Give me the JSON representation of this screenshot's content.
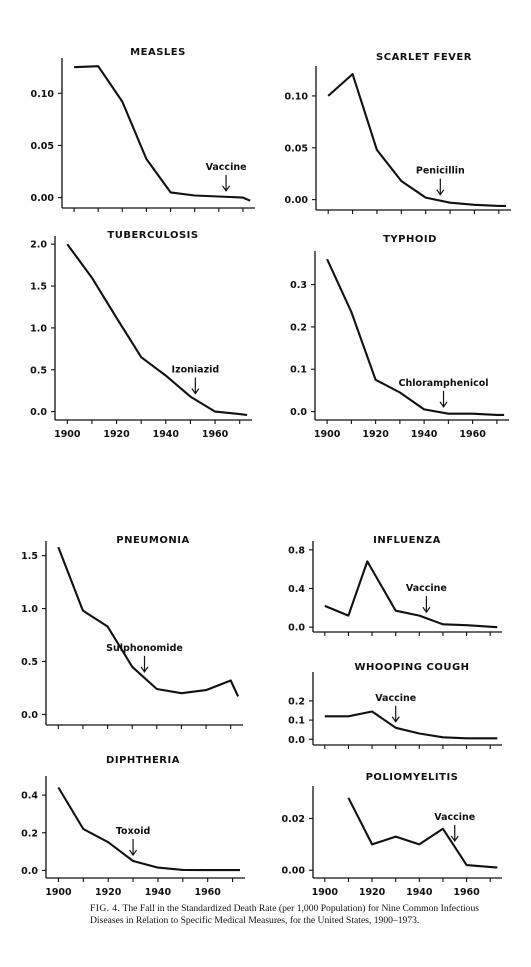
{
  "caption": {
    "lead": "FIG. 4.",
    "text": "The Fall in the Standardized Death Rate (per 1,000 Population) for Nine Common Infectious Diseases in Relation to Specific Medical Measures, for the United States, 1900–1973."
  },
  "colors": {
    "ink": "#111111",
    "background": "#ffffff"
  },
  "chart_data": [
    {
      "type": "line",
      "title": "MEASLES",
      "x": [
        1900,
        1910,
        1920,
        1930,
        1940,
        1950,
        1960,
        1970,
        1973
      ],
      "y": [
        0.125,
        0.126,
        0.092,
        0.037,
        0.005,
        0.002,
        0.001,
        0.0,
        -0.003
      ],
      "ylim": [
        -0.01,
        0.13
      ],
      "yticks": [
        0.0,
        0.05,
        0.1
      ],
      "ytick_labels": [
        "0.00",
        "0.05",
        "0.10"
      ],
      "annotation": {
        "label": "Vaccine",
        "year": 1963
      }
    },
    {
      "type": "line",
      "title": "SCARLET FEVER",
      "x": [
        1900,
        1910,
        1920,
        1930,
        1940,
        1950,
        1960,
        1970,
        1973
      ],
      "y": [
        0.1,
        0.121,
        0.048,
        0.018,
        0.002,
        -0.003,
        -0.005,
        -0.006,
        -0.006
      ],
      "ylim": [
        -0.01,
        0.125
      ],
      "yticks": [
        0.0,
        0.05,
        0.1
      ],
      "ytick_labels": [
        "0.00",
        "0.05",
        "0.10"
      ],
      "annotation": {
        "label": "Penicillin",
        "year": 1946
      }
    },
    {
      "type": "line",
      "title": "TUBERCULOSIS",
      "x": [
        1900,
        1910,
        1920,
        1930,
        1940,
        1950,
        1960,
        1970,
        1973
      ],
      "y": [
        2.0,
        1.6,
        1.12,
        0.65,
        0.43,
        0.18,
        0.0,
        -0.03,
        -0.04
      ],
      "ylim": [
        -0.1,
        2.05
      ],
      "yticks": [
        0.0,
        0.5,
        1.0,
        1.5,
        2.0
      ],
      "ytick_labels": [
        "0.0",
        "0.5",
        "1.0",
        "1.5",
        "2.0"
      ],
      "xticks": [
        1900,
        1920,
        1940,
        1960
      ],
      "xtick_labels": [
        "1900",
        "1920",
        "1940",
        "1960"
      ],
      "annotation": {
        "label": "Izoniazid",
        "year": 1952
      }
    },
    {
      "type": "line",
      "title": "TYPHOID",
      "x": [
        1900,
        1910,
        1920,
        1930,
        1940,
        1950,
        1960,
        1970,
        1973
      ],
      "y": [
        0.36,
        0.235,
        0.075,
        0.045,
        0.005,
        -0.005,
        -0.005,
        -0.008,
        -0.008
      ],
      "ylim": [
        -0.02,
        0.37
      ],
      "yticks": [
        0.0,
        0.1,
        0.2,
        0.3
      ],
      "ytick_labels": [
        "0.0",
        "0.1",
        "0.2",
        "0.3"
      ],
      "xticks": [
        1900,
        1920,
        1940,
        1960
      ],
      "xtick_labels": [
        "1900",
        "1920",
        "1940",
        "1960"
      ],
      "annotation": {
        "label": "Chloramphenicol",
        "year": 1948
      }
    },
    {
      "type": "line",
      "title": "PNEUMONIA",
      "x": [
        1900,
        1910,
        1920,
        1930,
        1940,
        1950,
        1960,
        1970,
        1973
      ],
      "y": [
        1.58,
        0.98,
        0.83,
        0.45,
        0.24,
        0.2,
        0.23,
        0.32,
        0.17
      ],
      "ylim": [
        -0.1,
        1.6
      ],
      "yticks": [
        0.0,
        0.5,
        1.0,
        1.5
      ],
      "ytick_labels": [
        "0.0",
        "0.5",
        "1.0",
        "1.5"
      ],
      "annotation": {
        "label": "Sulphonomide",
        "year": 1935
      }
    },
    {
      "type": "line",
      "title": "INFLUENZA",
      "x": [
        1900,
        1910,
        1918,
        1930,
        1940,
        1950,
        1960,
        1973
      ],
      "y": [
        0.22,
        0.12,
        0.68,
        0.17,
        0.12,
        0.03,
        0.02,
        0.0
      ],
      "ylim": [
        -0.05,
        0.85
      ],
      "yticks": [
        0.0,
        0.4,
        0.8
      ],
      "ytick_labels": [
        "0.0",
        "0.4",
        "0.8"
      ],
      "annotation": {
        "label": "Vaccine",
        "year": 1943
      }
    },
    {
      "type": "line",
      "title": "WHOOPING COUGH",
      "x": [
        1900,
        1910,
        1920,
        1930,
        1940,
        1950,
        1960,
        1973
      ],
      "y": [
        0.12,
        0.12,
        0.145,
        0.06,
        0.03,
        0.01,
        0.005,
        0.005
      ],
      "ylim": [
        -0.03,
        0.33
      ],
      "yticks": [
        0.0,
        0.1,
        0.2
      ],
      "ytick_labels": [
        "0.0",
        "0.1",
        "0.2"
      ],
      "annotation": {
        "label": "Vaccine",
        "year": 1930
      }
    },
    {
      "type": "line",
      "title": "DIPHTHERIA",
      "x": [
        1900,
        1910,
        1920,
        1930,
        1940,
        1950,
        1960,
        1970,
        1973
      ],
      "y": [
        0.44,
        0.22,
        0.15,
        0.05,
        0.015,
        0.003,
        0.002,
        0.002,
        0.002
      ],
      "ylim": [
        -0.04,
        0.48
      ],
      "yticks": [
        0.0,
        0.2,
        0.4
      ],
      "ytick_labels": [
        "0.0",
        "0.2",
        "0.4"
      ],
      "xticks": [
        1900,
        1920,
        1940,
        1960
      ],
      "xtick_labels": [
        "1900",
        "1920",
        "1940",
        "1960"
      ],
      "annotation": {
        "label": "Toxoid",
        "year": 1930
      }
    },
    {
      "type": "line",
      "title": "POLIOMYELITIS",
      "x": [
        1910,
        1920,
        1930,
        1940,
        1950,
        1955,
        1960,
        1973
      ],
      "y": [
        0.028,
        0.01,
        0.013,
        0.01,
        0.016,
        0.009,
        0.002,
        0.001
      ],
      "ylim": [
        -0.003,
        0.031
      ],
      "yticks": [
        0.0,
        0.02
      ],
      "ytick_labels": [
        "0.00",
        "0.02"
      ],
      "xticks": [
        1900,
        1920,
        1940,
        1960
      ],
      "xtick_labels": [
        "1900",
        "1920",
        "1940",
        "1960"
      ],
      "annotation": {
        "label": "Vaccine",
        "year": 1955
      }
    }
  ]
}
